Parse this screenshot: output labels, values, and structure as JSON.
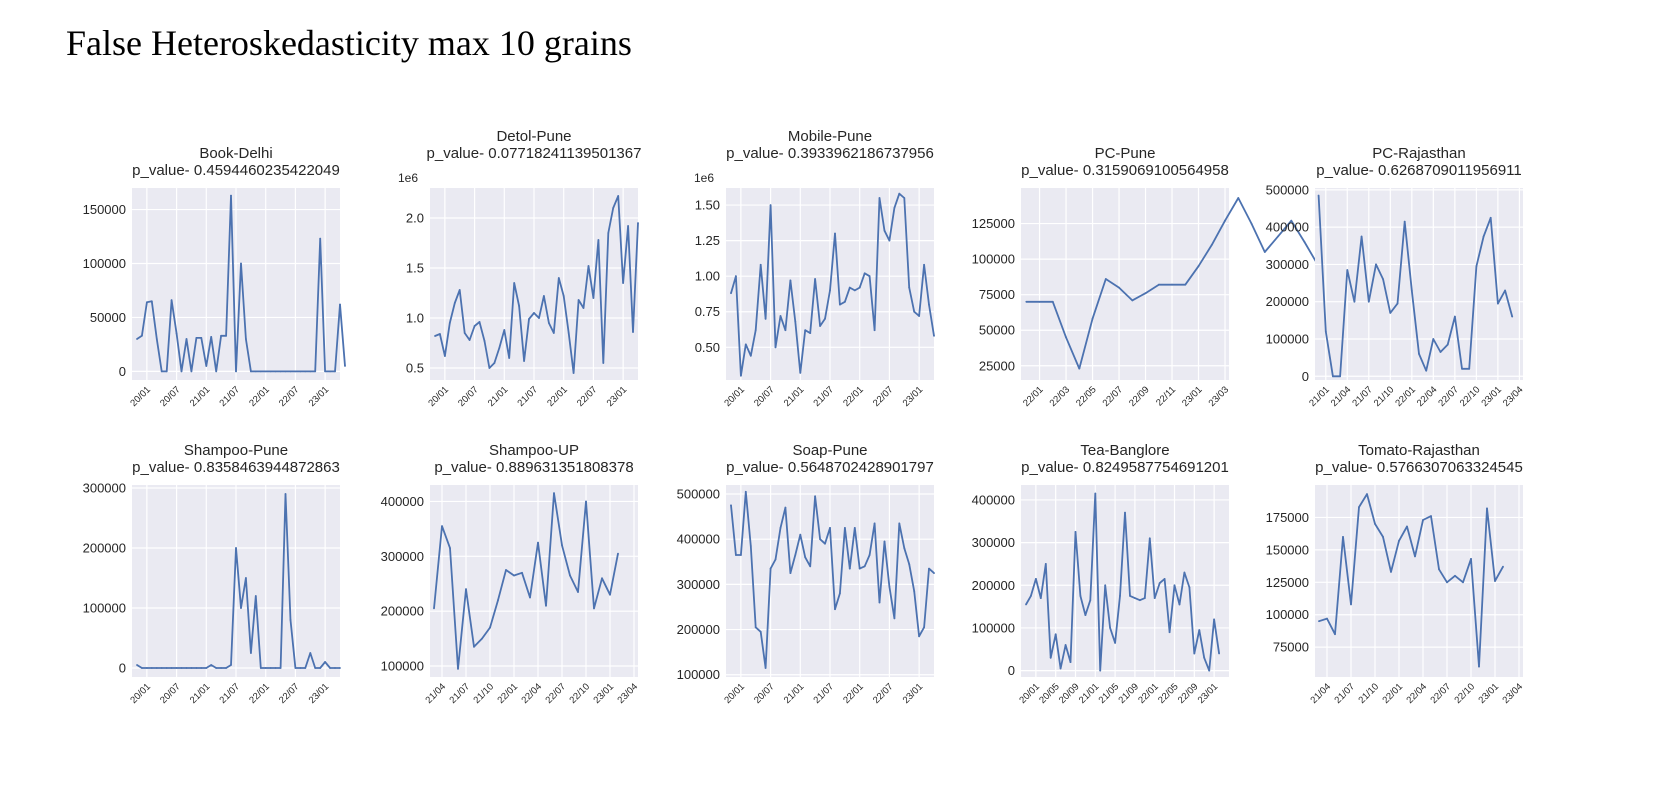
{
  "slide": {
    "title": "False Heteroskedasticity max 10 grains"
  },
  "style": {
    "plot_bg": "#eaeaf2",
    "grid": "#ffffff",
    "line": "#4c72b0",
    "text": "#262626"
  },
  "chart_data": [
    {
      "type": "line",
      "title": "Book-Delhi",
      "subtitle": "p_value- 0.4594460235422049",
      "grid": true,
      "x_tick_labels": [
        "20/01",
        "20/07",
        "21/01",
        "21/07",
        "22/01",
        "22/07",
        "23/01"
      ],
      "x_tick_positions": [
        2,
        8,
        14,
        20,
        26,
        32,
        38
      ],
      "x_range": [
        -1,
        41
      ],
      "ylim": [
        -8000,
        170000
      ],
      "y_ticks": [
        0,
        50000,
        100000,
        150000
      ],
      "y_tick_labels": [
        "0",
        "50000",
        "100000",
        "150000"
      ],
      "y_offset_label": "",
      "values": [
        30000,
        33000,
        64000,
        65000,
        30000,
        0,
        0,
        66000,
        35000,
        0,
        30000,
        0,
        31000,
        31000,
        5000,
        32000,
        0,
        33000,
        33000,
        163000,
        0,
        100000,
        30000,
        0,
        0,
        0,
        0,
        0,
        0,
        0,
        0,
        0,
        0,
        0,
        0,
        0,
        0,
        123000,
        0,
        0,
        0,
        62000,
        5000
      ]
    },
    {
      "type": "line",
      "title": "Detol-Pune",
      "subtitle": "p_value- 0.07718241139501367",
      "grid": true,
      "x_tick_labels": [
        "20/01",
        "20/07",
        "21/01",
        "21/07",
        "22/01",
        "22/07",
        "23/01"
      ],
      "x_tick_positions": [
        2,
        8,
        14,
        20,
        26,
        32,
        38
      ],
      "x_range": [
        -1,
        41
      ],
      "ylim": [
        0.38,
        2.3
      ],
      "y_ticks": [
        0.5,
        1.0,
        1.5,
        2.0
      ],
      "y_tick_labels": [
        "0.5",
        "1.0",
        "1.5",
        "2.0"
      ],
      "y_offset_label": "1e6",
      "values": [
        0.82,
        0.84,
        0.62,
        0.95,
        1.15,
        1.28,
        0.85,
        0.78,
        0.92,
        0.96,
        0.77,
        0.5,
        0.55,
        0.7,
        0.88,
        0.6,
        1.35,
        1.12,
        0.57,
        0.99,
        1.05,
        1.0,
        1.22,
        0.95,
        0.85,
        1.4,
        1.22,
        0.85,
        0.45,
        1.18,
        1.1,
        1.52,
        1.2,
        1.78,
        0.55,
        1.85,
        2.1,
        2.22,
        1.35,
        1.92,
        0.86,
        1.95
      ]
    },
    {
      "type": "line",
      "title": "Mobile-Pune",
      "subtitle": "p_value- 0.3933962186737956",
      "grid": true,
      "x_tick_labels": [
        "20/01",
        "20/07",
        "21/01",
        "21/07",
        "22/01",
        "22/07",
        "23/01"
      ],
      "x_tick_positions": [
        2,
        8,
        14,
        20,
        26,
        32,
        38
      ],
      "x_range": [
        -1,
        41
      ],
      "ylim": [
        0.27,
        1.62
      ],
      "y_ticks": [
        0.5,
        0.75,
        1.0,
        1.25,
        1.5
      ],
      "y_tick_labels": [
        "0.50",
        "0.75",
        "1.00",
        "1.25",
        "1.50"
      ],
      "y_offset_label": "1e6",
      "values": [
        0.88,
        1.0,
        0.3,
        0.52,
        0.44,
        0.62,
        1.08,
        0.7,
        1.5,
        0.5,
        0.72,
        0.62,
        0.97,
        0.68,
        0.32,
        0.62,
        0.6,
        0.98,
        0.65,
        0.7,
        0.9,
        1.3,
        0.8,
        0.82,
        0.92,
        0.9,
        0.92,
        1.02,
        1.0,
        0.62,
        1.55,
        1.32,
        1.25,
        1.48,
        1.58,
        1.55,
        0.92,
        0.75,
        0.72,
        1.08,
        0.8,
        0.58
      ]
    },
    {
      "type": "line",
      "title": "PC-Pune",
      "subtitle": "p_value- 0.3159069100564958",
      "grid": true,
      "x_tick_labels": [
        "22/01",
        "22/03",
        "22/05",
        "22/07",
        "22/09",
        "22/11",
        "23/01",
        "23/03"
      ],
      "x_tick_positions": [
        1,
        3,
        5,
        7,
        9,
        11,
        13,
        15
      ],
      "x_range": [
        -0.4,
        15.3
      ],
      "ylim": [
        15000,
        150000
      ],
      "y_ticks": [
        25000,
        50000,
        75000,
        100000,
        125000
      ],
      "y_tick_labels": [
        "25000",
        "50000",
        "75000",
        "100000",
        "125000"
      ],
      "y_offset_label": "",
      "values": [
        70000,
        70000,
        70000,
        45000,
        23000,
        58000,
        86000,
        80000,
        71000,
        76000,
        82000,
        82000,
        82000,
        95000,
        110000,
        127000,
        143000,
        125000,
        105000,
        116000,
        127000,
        112000,
        96000,
        94000,
        93000,
        100000,
        109000,
        98000,
        86000,
        87000,
        88000
      ]
    },
    {
      "type": "line",
      "title": "PC-Rajasthan",
      "subtitle": "p_value- 0.6268709011956911",
      "grid": true,
      "x_tick_labels": [
        "21/01",
        "21/04",
        "21/07",
        "21/10",
        "22/01",
        "22/04",
        "22/07",
        "22/10",
        "23/01",
        "23/04"
      ],
      "x_tick_positions": [
        1,
        4,
        7,
        10,
        13,
        16,
        19,
        22,
        25,
        28
      ],
      "x_range": [
        -0.5,
        28.5
      ],
      "ylim": [
        -10000,
        505000
      ],
      "y_ticks": [
        0,
        100000,
        200000,
        300000,
        400000,
        500000
      ],
      "y_tick_labels": [
        "0",
        "100000",
        "200000",
        "300000",
        "400000",
        "500000"
      ],
      "y_offset_label": "",
      "values": [
        485000,
        120000,
        0,
        0,
        285000,
        200000,
        375000,
        200000,
        300000,
        260000,
        170000,
        195000,
        415000,
        230000,
        60000,
        15000,
        100000,
        65000,
        85000,
        160000,
        20000,
        20000,
        295000,
        375000,
        425000,
        195000,
        230000,
        160000
      ]
    },
    {
      "type": "line",
      "title": "Shampoo-Pune",
      "subtitle": "p_value- 0.8358463944872863",
      "grid": true,
      "x_tick_labels": [
        "20/01",
        "20/07",
        "21/01",
        "21/07",
        "22/01",
        "22/07",
        "23/01"
      ],
      "x_tick_positions": [
        2,
        8,
        14,
        20,
        26,
        32,
        38
      ],
      "x_range": [
        -1,
        41
      ],
      "ylim": [
        -15000,
        305000
      ],
      "y_ticks": [
        0,
        100000,
        200000,
        300000
      ],
      "y_tick_labels": [
        "0",
        "100000",
        "200000",
        "300000"
      ],
      "y_offset_label": "",
      "values": [
        5000,
        0,
        0,
        0,
        0,
        0,
        0,
        0,
        0,
        0,
        0,
        0,
        0,
        0,
        0,
        5000,
        0,
        0,
        0,
        5000,
        200000,
        100000,
        150000,
        25000,
        120000,
        0,
        0,
        0,
        0,
        0,
        290000,
        80000,
        0,
        0,
        0,
        25000,
        0,
        0,
        10000,
        0,
        0,
        0
      ]
    },
    {
      "type": "line",
      "title": "Shampoo-UP",
      "subtitle": "p_value- 0.889631351808378",
      "grid": true,
      "x_tick_labels": [
        "21/04",
        "21/07",
        "21/10",
        "22/01",
        "22/04",
        "22/07",
        "22/10",
        "23/01",
        "23/04"
      ],
      "x_tick_positions": [
        1,
        4,
        7,
        10,
        13,
        16,
        19,
        22,
        25
      ],
      "x_range": [
        -0.5,
        25.5
      ],
      "ylim": [
        80000,
        430000
      ],
      "y_ticks": [
        100000,
        200000,
        300000,
        400000
      ],
      "y_tick_labels": [
        "100000",
        "200000",
        "300000",
        "400000"
      ],
      "y_offset_label": "",
      "values": [
        205000,
        355000,
        315000,
        95000,
        240000,
        135000,
        150000,
        170000,
        220000,
        275000,
        265000,
        270000,
        225000,
        325000,
        210000,
        415000,
        320000,
        265000,
        235000,
        400000,
        205000,
        260000,
        230000,
        305000
      ]
    },
    {
      "type": "line",
      "title": "Soap-Pune",
      "subtitle": "p_value- 0.5648702428901797",
      "grid": true,
      "x_tick_labels": [
        "20/01",
        "20/07",
        "21/01",
        "21/07",
        "22/01",
        "22/07",
        "23/01"
      ],
      "x_tick_positions": [
        2,
        8,
        14,
        20,
        26,
        32,
        38
      ],
      "x_range": [
        -1,
        41
      ],
      "ylim": [
        95000,
        520000
      ],
      "y_ticks": [
        100000,
        200000,
        300000,
        400000,
        500000
      ],
      "y_tick_labels": [
        "100000",
        "200000",
        "300000",
        "400000",
        "500000"
      ],
      "y_offset_label": "",
      "values": [
        475000,
        365000,
        365000,
        505000,
        385000,
        205000,
        195000,
        115000,
        335000,
        355000,
        425000,
        470000,
        325000,
        365000,
        410000,
        360000,
        340000,
        495000,
        400000,
        390000,
        425000,
        245000,
        280000,
        425000,
        335000,
        425000,
        335000,
        340000,
        365000,
        435000,
        260000,
        395000,
        295000,
        225000,
        435000,
        380000,
        345000,
        285000,
        185000,
        205000,
        335000,
        325000
      ]
    },
    {
      "type": "line",
      "title": "Tea-Banglore",
      "subtitle": "p_value- 0.8249587754691201",
      "grid": true,
      "x_tick_labels": [
        "20/01",
        "20/05",
        "20/09",
        "21/01",
        "21/05",
        "21/09",
        "22/01",
        "22/05",
        "22/09",
        "23/01"
      ],
      "x_tick_positions": [
        2,
        6,
        10,
        14,
        18,
        22,
        26,
        30,
        34,
        38
      ],
      "x_range": [
        -1,
        41
      ],
      "ylim": [
        -15000,
        435000
      ],
      "y_ticks": [
        0,
        100000,
        200000,
        300000,
        400000
      ],
      "y_tick_labels": [
        "0",
        "100000",
        "200000",
        "300000",
        "400000"
      ],
      "y_offset_label": "",
      "values": [
        155000,
        175000,
        215000,
        170000,
        250000,
        30000,
        85000,
        5000,
        60000,
        20000,
        325000,
        175000,
        130000,
        165000,
        415000,
        0,
        200000,
        100000,
        65000,
        175000,
        370000,
        175000,
        170000,
        165000,
        170000,
        310000,
        170000,
        205000,
        215000,
        90000,
        200000,
        155000,
        230000,
        195000,
        40000,
        95000,
        30000,
        0,
        120000,
        40000
      ]
    },
    {
      "type": "line",
      "title": "Tomato-Rajasthan",
      "subtitle": "p_value- 0.5766307063324545",
      "grid": true,
      "x_tick_labels": [
        "21/04",
        "21/07",
        "21/10",
        "22/01",
        "22/04",
        "22/07",
        "22/10",
        "23/01",
        "23/04"
      ],
      "x_tick_positions": [
        1,
        4,
        7,
        10,
        13,
        16,
        19,
        22,
        25
      ],
      "x_range": [
        -0.5,
        25.5
      ],
      "ylim": [
        52000,
        200000
      ],
      "y_ticks": [
        75000,
        100000,
        125000,
        150000,
        175000
      ],
      "y_tick_labels": [
        "75000",
        "100000",
        "125000",
        "150000",
        "175000"
      ],
      "y_offset_label": "",
      "values": [
        95000,
        97000,
        85000,
        160000,
        108000,
        183000,
        193000,
        170000,
        160000,
        133000,
        157000,
        168000,
        145000,
        173000,
        176000,
        135000,
        125000,
        130000,
        125000,
        143000,
        60000,
        182000,
        126000,
        137000
      ]
    }
  ]
}
